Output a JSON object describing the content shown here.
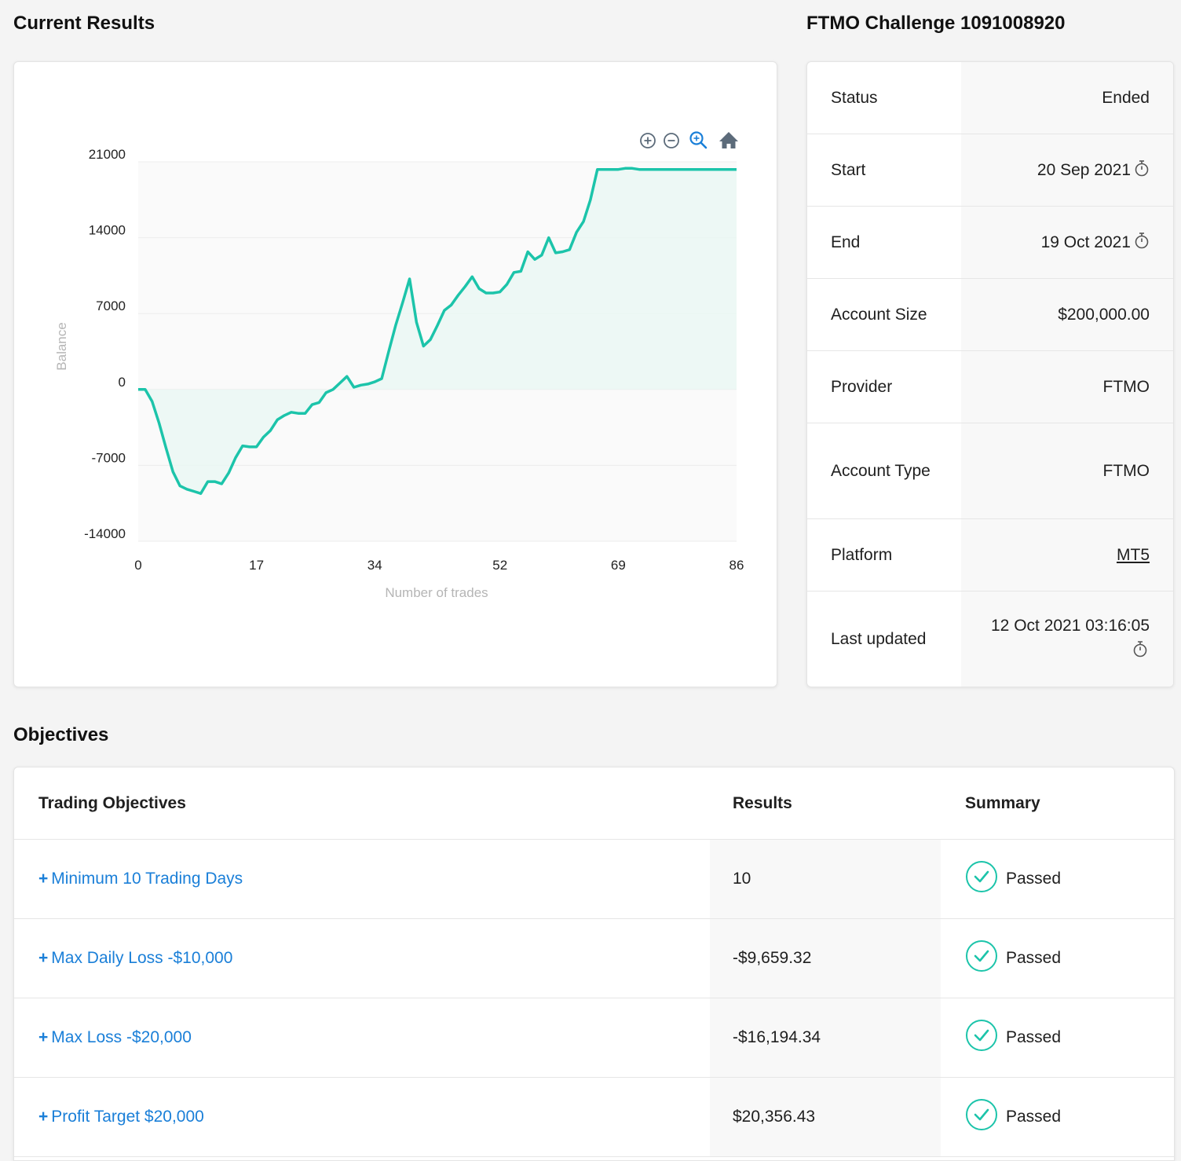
{
  "headings": {
    "current_results": "Current Results",
    "account_title": "FTMO Challenge 1091008920",
    "objectives": "Objectives"
  },
  "colors": {
    "line": "#1cc4aa",
    "fill": "#eaf7f4",
    "link": "#1a7fd8",
    "pass": "#1cc4aa"
  },
  "chart_data": {
    "type": "area",
    "xlabel": "Number of trades",
    "ylabel": "Balance",
    "xlim": [
      0,
      86
    ],
    "ylim": [
      -14000,
      21000
    ],
    "x_ticks": [
      "0",
      "17",
      "34",
      "52",
      "69",
      "86"
    ],
    "y_ticks": [
      "21000",
      "14000",
      "7000",
      "0",
      "-7000",
      "-14000"
    ],
    "series": [
      {
        "x": [
          0,
          1,
          2,
          3,
          4,
          5,
          6,
          7,
          8,
          9,
          10,
          11,
          12,
          13,
          14,
          15,
          16,
          17,
          18,
          19,
          20,
          21,
          22,
          23,
          24,
          25,
          26,
          27,
          28,
          29,
          30,
          31,
          32,
          33,
          34,
          35,
          36,
          37,
          38,
          39,
          40,
          41,
          42,
          43,
          44,
          45,
          46,
          47,
          48,
          49,
          50,
          51,
          52,
          53,
          54,
          55,
          56,
          57,
          58,
          59,
          60,
          61,
          62,
          63,
          64,
          65,
          66,
          67,
          68,
          69,
          70,
          71,
          72,
          73,
          74,
          75,
          76,
          77,
          78,
          79,
          80,
          81,
          82,
          83,
          84,
          85,
          86
        ],
        "y": [
          0,
          0,
          -1100,
          -3100,
          -5400,
          -7600,
          -8900,
          -9200,
          -9400,
          -9600,
          -8500,
          -8500,
          -8700,
          -7700,
          -6300,
          -5200,
          -5300,
          -5300,
          -4400,
          -3800,
          -2800,
          -2400,
          -2100,
          -2200,
          -2200,
          -1400,
          -1200,
          -300,
          0,
          600,
          1200,
          200,
          400,
          500,
          700,
          1000,
          3500,
          5900,
          8000,
          10200,
          6200,
          4000,
          4600,
          5900,
          7300,
          7800,
          8700,
          9500,
          10400,
          9300,
          8900,
          8900,
          9000,
          9700,
          10800,
          10900,
          12700,
          12000,
          12400,
          14000,
          12600,
          12700,
          12900,
          14500,
          15500,
          17500,
          20300,
          20300,
          20300,
          20300,
          20400,
          20400,
          20300,
          20300,
          20300,
          20300,
          20300,
          20300,
          20300,
          20300,
          20300,
          20300,
          20300,
          20300,
          20300,
          20300,
          20300
        ]
      }
    ]
  },
  "toolbar": [
    "zoom-in-icon",
    "zoom-out-icon",
    "magnify-icon",
    "home-icon"
  ],
  "info": [
    {
      "key": "Status",
      "value": "Ended"
    },
    {
      "key": "Start",
      "value": "20 Sep 2021"
    },
    {
      "key": "End",
      "value": "19 Oct 2021"
    },
    {
      "key": "Account Size",
      "value": "$200,000.00"
    },
    {
      "key": "Provider",
      "value": "FTMO"
    },
    {
      "key": "Account Type",
      "value": "FTMO"
    },
    {
      "key": "Platform",
      "value": "MT5"
    },
    {
      "key": "Last updated",
      "value": "12 Oct 2021 03:16:05"
    }
  ],
  "objectives": {
    "headers": {
      "objective": "Trading Objectives",
      "results": "Results",
      "summary": "Summary"
    },
    "rows": [
      {
        "label": "Minimum 10 Trading Days",
        "result": "10",
        "summary": "Passed"
      },
      {
        "label": "Max Daily Loss -$10,000",
        "result": "-$9,659.32",
        "summary": "Passed"
      },
      {
        "label": "Max Loss -$20,000",
        "result": "-$16,194.34",
        "summary": "Passed"
      },
      {
        "label": "Profit Target $20,000",
        "result": "$20,356.43",
        "summary": "Passed"
      }
    ]
  }
}
